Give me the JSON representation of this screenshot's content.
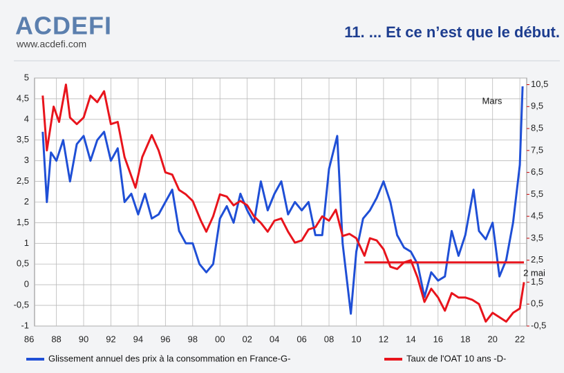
{
  "header": {
    "logo": "ACDEFI",
    "url": "www.acdefi.com"
  },
  "chart_data": {
    "type": "line",
    "title": "11. ... Et ce n’est que le début.",
    "annotations": [
      "Mars",
      "2 mai"
    ],
    "xlim": [
      1986.4,
      2022.5
    ],
    "xticks": [
      {
        "value": 1986,
        "label": "86"
      },
      {
        "value": 1988,
        "label": "88"
      },
      {
        "value": 1990,
        "label": "90"
      },
      {
        "value": 1992,
        "label": "92"
      },
      {
        "value": 1994,
        "label": "94"
      },
      {
        "value": 1996,
        "label": "96"
      },
      {
        "value": 1998,
        "label": "98"
      },
      {
        "value": 2000,
        "label": "00"
      },
      {
        "value": 2002,
        "label": "02"
      },
      {
        "value": 2004,
        "label": "04"
      },
      {
        "value": 2006,
        "label": "06"
      },
      {
        "value": 2008,
        "label": "08"
      },
      {
        "value": 2010,
        "label": "10"
      },
      {
        "value": 2012,
        "label": "12"
      },
      {
        "value": 2014,
        "label": "14"
      },
      {
        "value": 2016,
        "label": "16"
      },
      {
        "value": 2018,
        "label": "18"
      },
      {
        "value": 2020,
        "label": "20"
      },
      {
        "value": 2022,
        "label": "22"
      }
    ],
    "ylim": [
      -1,
      5
    ],
    "yticks": [
      -1,
      {
        "value": -0.5,
        "label": "-0,5"
      },
      0,
      {
        "value": 0.5,
        "label": "0,5"
      },
      1,
      {
        "value": 1.5,
        "label": "1,5"
      },
      2,
      {
        "value": 2.5,
        "label": "2,5"
      },
      3,
      {
        "value": 3.5,
        "label": "3,5"
      },
      4,
      {
        "value": 4.5,
        "label": "4,5"
      },
      5
    ],
    "y2lim": [
      -0.5,
      10.8
    ],
    "y2ticks": [
      {
        "value": -0.5,
        "label": "-0,5"
      },
      {
        "value": 0.5,
        "label": "0,5"
      },
      {
        "value": 1.5,
        "label": "1,5"
      },
      {
        "value": 2.5,
        "label": "2,5"
      },
      {
        "value": 3.5,
        "label": "3,5"
      },
      {
        "value": 4.5,
        "label": "4,5"
      },
      {
        "value": 5.5,
        "label": "5,5"
      },
      {
        "value": 6.5,
        "label": "6,5"
      },
      {
        "value": 7.5,
        "label": "7,5"
      },
      {
        "value": 8.5,
        "label": "8,5"
      },
      {
        "value": 9.5,
        "label": "9,5"
      },
      {
        "value": 10.5,
        "label": "10,5"
      }
    ],
    "grid": true,
    "legend": "bottom",
    "series": [
      {
        "name": "Glissement annuel des prix à la consommation en France-G-",
        "color": "#1f4fd6",
        "x": [
          1987.0,
          1987.3,
          1987.6,
          1988.0,
          1988.5,
          1989.0,
          1989.5,
          1990.0,
          1990.5,
          1991.0,
          1991.5,
          1992.0,
          1992.5,
          1993.0,
          1993.5,
          1994.0,
          1994.5,
          1995.0,
          1995.5,
          1996.0,
          1996.5,
          1997.0,
          1997.5,
          1998.0,
          1998.5,
          1999.0,
          1999.5,
          2000.0,
          2000.5,
          2001.0,
          2001.5,
          2002.0,
          2002.5,
          2003.0,
          2003.5,
          2004.0,
          2004.5,
          2005.0,
          2005.5,
          2006.0,
          2006.5,
          2007.0,
          2007.5,
          2008.0,
          2008.6,
          2009.0,
          2009.6,
          2010.0,
          2010.5,
          2011.0,
          2011.5,
          2012.0,
          2012.5,
          2013.0,
          2013.5,
          2014.0,
          2014.5,
          2015.0,
          2015.5,
          2016.0,
          2016.5,
          2017.0,
          2017.5,
          2018.0,
          2018.6,
          2019.0,
          2019.5,
          2020.0,
          2020.5,
          2021.0,
          2021.5,
          2022.0,
          2022.2
        ],
        "values": [
          3.7,
          2.0,
          3.2,
          3.0,
          3.5,
          2.5,
          3.4,
          3.6,
          3.0,
          3.5,
          3.7,
          3.0,
          3.3,
          2.0,
          2.2,
          1.7,
          2.2,
          1.6,
          1.7,
          2.0,
          2.3,
          1.3,
          1.0,
          1.0,
          0.5,
          0.3,
          0.5,
          1.6,
          1.9,
          1.5,
          2.2,
          1.8,
          1.5,
          2.5,
          1.8,
          2.2,
          2.5,
          1.7,
          2.0,
          1.8,
          2.0,
          1.2,
          1.2,
          2.8,
          3.6,
          1.0,
          -0.7,
          0.8,
          1.6,
          1.8,
          2.1,
          2.5,
          2.0,
          1.2,
          0.9,
          0.8,
          0.5,
          -0.3,
          0.3,
          0.1,
          0.2,
          1.3,
          0.7,
          1.2,
          2.3,
          1.3,
          1.1,
          1.5,
          0.2,
          0.6,
          1.5,
          2.9,
          4.8
        ]
      },
      {
        "name": "Taux de l'OAT 10 ans -D-",
        "color": "#e8141c",
        "axis": "y2",
        "x": [
          1987.0,
          1987.3,
          1987.8,
          1988.2,
          1988.7,
          1989.0,
          1989.5,
          1990.0,
          1990.5,
          1991.0,
          1991.5,
          1992.0,
          1992.5,
          1993.0,
          1993.8,
          1994.3,
          1995.0,
          1995.5,
          1996.0,
          1996.5,
          1997.0,
          1997.5,
          1998.0,
          1998.6,
          1999.0,
          1999.5,
          2000.0,
          2000.5,
          2001.0,
          2001.5,
          2002.0,
          2002.5,
          2003.0,
          2003.5,
          2004.0,
          2004.5,
          2005.0,
          2005.5,
          2006.0,
          2006.5,
          2007.0,
          2007.5,
          2008.0,
          2008.5,
          2009.0,
          2009.5,
          2010.0,
          2010.6,
          2011.0,
          2011.5,
          2012.0,
          2012.5,
          2013.0,
          2013.5,
          2014.0,
          2014.5,
          2015.0,
          2015.5,
          2016.0,
          2016.5,
          2017.0,
          2017.5,
          2018.0,
          2018.5,
          2019.0,
          2019.5,
          2020.0,
          2020.5,
          2021.0,
          2021.5,
          2022.0,
          2022.3
        ],
        "values": [
          10.0,
          7.5,
          9.5,
          8.8,
          10.5,
          9.0,
          8.7,
          9.0,
          10.0,
          9.7,
          10.2,
          8.7,
          8.8,
          7.2,
          5.8,
          7.2,
          8.2,
          7.5,
          6.5,
          6.4,
          5.7,
          5.5,
          5.2,
          4.3,
          3.8,
          4.5,
          5.5,
          5.4,
          5.0,
          5.2,
          5.0,
          4.5,
          4.2,
          3.8,
          4.3,
          4.4,
          3.8,
          3.3,
          3.4,
          3.9,
          4.0,
          4.5,
          4.3,
          4.8,
          3.6,
          3.7,
          3.5,
          2.7,
          3.5,
          3.4,
          3.0,
          2.2,
          2.1,
          2.4,
          2.5,
          1.7,
          0.6,
          1.2,
          0.8,
          0.2,
          1.0,
          0.8,
          0.8,
          0.7,
          0.5,
          -0.3,
          0.1,
          -0.1,
          -0.3,
          0.1,
          0.3,
          1.5
        ]
      }
    ],
    "reference_line": {
      "value": 2.4,
      "axis": "y2",
      "from": 2010.6,
      "to": 2022.3,
      "color": "#e8141c"
    }
  }
}
